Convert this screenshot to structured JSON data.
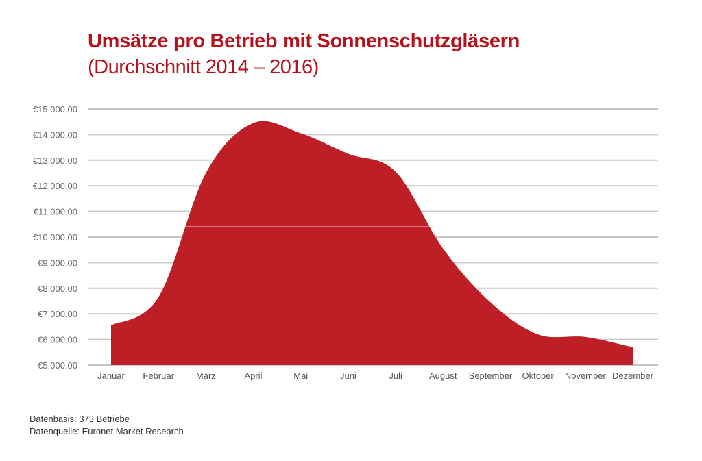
{
  "chart_data": {
    "type": "area",
    "title": "Umsätze pro Betrieb mit Sonnenschutzgläsern",
    "subtitle": "(Durchschnitt 2014 – 2016)",
    "xlabel": "",
    "ylabel": "",
    "categories": [
      "Januar",
      "Februar",
      "März",
      "April",
      "Mai",
      "Juni",
      "Juli",
      "August",
      "September",
      "Oktober",
      "November",
      "Dezember"
    ],
    "series": [
      {
        "name": "Umsatz pro Betrieb",
        "values": [
          6550,
          7650,
          12500,
          14450,
          14050,
          13250,
          12550,
          9550,
          7450,
          6200,
          6100,
          5700
        ],
        "color": "#be1e25"
      }
    ],
    "ylim": [
      5000,
      15000
    ],
    "yticks": [
      5000,
      6000,
      7000,
      8000,
      9000,
      10000,
      11000,
      12000,
      13000,
      14000,
      15000
    ],
    "ytick_labels": [
      "€5.000,00",
      "€6.000,00",
      "€7.000,00",
      "€8.000,00",
      "€9.000,00",
      "€10.000,00",
      "€11.000,00",
      "€12.000,00",
      "€13.000,00",
      "€14.000,00",
      "€15.000,00"
    ],
    "grid": true,
    "gridline_color": "#c8c8c8",
    "legend": "none"
  },
  "footer": {
    "basis": "Datenbasis: 373 Betriebe",
    "source": "Datenquelle: Euronet Market Research"
  }
}
